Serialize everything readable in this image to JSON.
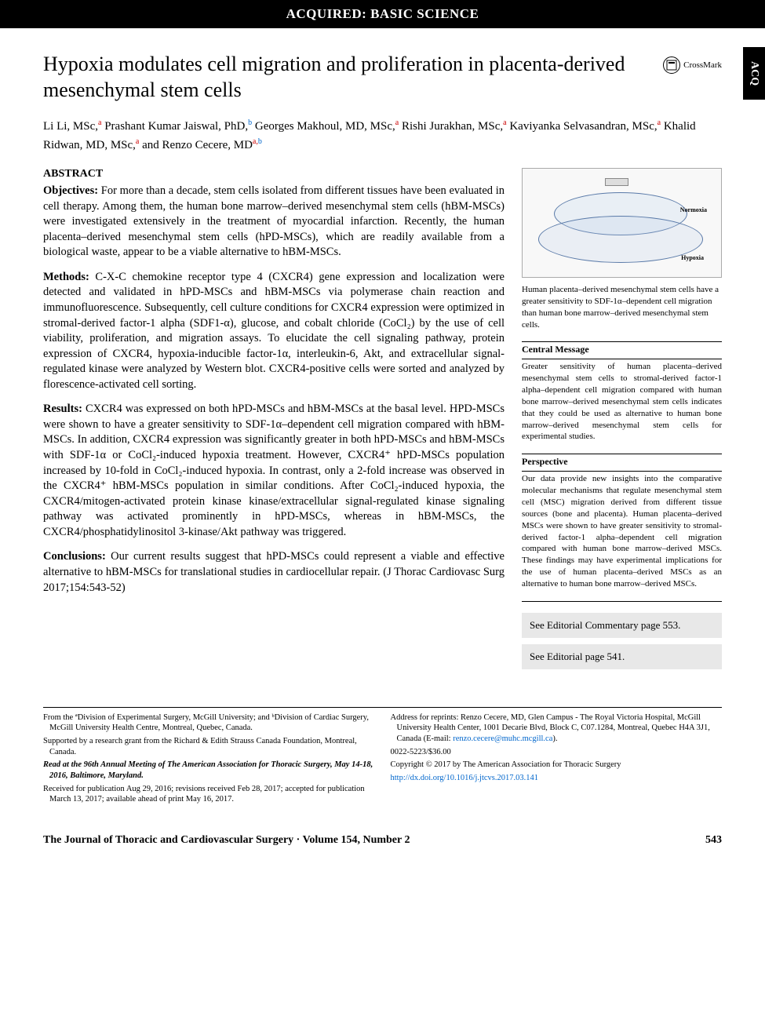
{
  "header": {
    "category": "ACQUIRED: BASIC SCIENCE",
    "side_tab": "ACQ"
  },
  "title": "Hypoxia modulates cell migration and proliferation in placenta-derived mesenchymal stem cells",
  "crossmark": "CrossMark",
  "authors_html": "Li Li, MSc,<span class='sup-a'>a</span> Prashant Kumar Jaiswal, PhD,<span class='sup-b'>b</span> Georges Makhoul, MD, MSc,<span class='sup-a'>a</span> Rishi Jurakhan, MSc,<span class='sup-a'>a</span> Kaviyanka Selvasandran, MSc,<span class='sup-a'>a</span> Khalid Ridwan, MD, MSc,<span class='sup-a'>a</span> and Renzo Cecere, MD<span class='sup-a'>a,</span><span class='sup-b'>b</span>",
  "abstract": {
    "heading": "ABSTRACT",
    "objectives": {
      "lead": "Objectives:",
      "text": " For more than a decade, stem cells isolated from different tissues have been evaluated in cell therapy. Among them, the human bone marrow–derived mesenchymal stem cells (hBM-MSCs) were investigated extensively in the treatment of myocardial infarction. Recently, the human placenta–derived mesenchymal stem cells (hPD-MSCs), which are readily available from a biological waste, appear to be a viable alternative to hBM-MSCs."
    },
    "methods": {
      "lead": "Methods:",
      "text": " C-X-C chemokine receptor type 4 (CXCR4) gene expression and localization were detected and validated in hPD-MSCs and hBM-MSCs via polymerase chain reaction and immunofluorescence. Subsequently, cell culture conditions for CXCR4 expression were optimized in stromal-derived factor-1 alpha (SDF1-α), glucose, and cobalt chloride (CoCl₂) by the use of cell viability, proliferation, and migration assays. To elucidate the cell signaling pathway, protein expression of CXCR4, hypoxia-inducible factor-1α, interleukin-6, Akt, and extracellular signal-regulated kinase were analyzed by Western blot. CXCR4-positive cells were sorted and analyzed by florescence-activated cell sorting."
    },
    "results": {
      "lead": "Results:",
      "text": " CXCR4 was expressed on both hPD-MSCs and hBM-MSCs at the basal level. HPD-MSCs were shown to have a greater sensitivity to SDF-1α–dependent cell migration compared with hBM-MSCs. In addition, CXCR4 expression was significantly greater in both hPD-MSCs and hBM-MSCs with SDF-1α or CoCl₂-induced hypoxia treatment. However, CXCR4⁺ hPD-MSCs population increased by 10-fold in CoCl₂-induced hypoxia. In contrast, only a 2-fold increase was observed in the CXCR4⁺ hBM-MSCs population in similar conditions. After CoCl₂-induced hypoxia, the CXCR4/mitogen-activated protein kinase kinase/extracellular signal-regulated kinase signaling pathway was activated prominently in hPD-MSCs, whereas in hBM-MSCs, the CXCR4/phosphatidylinositol 3-kinase/Akt pathway was triggered."
    },
    "conclusions": {
      "lead": "Conclusions:",
      "text": " Our current results suggest that hPD-MSCs could represent a viable and effective alternative to hBM-MSCs for translational studies in cardiocellular repair. (J Thorac Cardiovasc Surg 2017;154:543-52)"
    }
  },
  "sidebar": {
    "figure_caption": "Human placenta–derived mesenchymal stem cells have a greater sensitivity to SDF-1α–dependent cell migration than human bone marrow–derived mesenchymal stem cells.",
    "central": {
      "title": "Central Message",
      "body": "Greater sensitivity of human placenta–derived mesenchymal stem cells to stromal-derived factor-1 alpha–dependent cell migration compared with human bone marrow–derived mesenchymal stem cells indicates that they could be used as alternative to human bone marrow–derived mesenchymal stem cells for experimental studies."
    },
    "perspective": {
      "title": "Perspective",
      "body": "Our data provide new insights into the comparative molecular mechanisms that regulate mesenchymal stem cell (MSC) migration derived from different tissue sources (bone and placenta). Human placenta–derived MSCs were shown to have greater sensitivity to stromal-derived factor-1 alpha–dependent cell migration compared with human bone marrow–derived MSCs. These findings may have experimental implications for the use of human placenta–derived MSCs as an alternative to human bone marrow–derived MSCs."
    },
    "ref1": "See Editorial Commentary page 553.",
    "ref2": "See Editorial page 541.",
    "figure_labels": {
      "normoxia": "Normoxia",
      "hypoxia": "Hypoxia"
    }
  },
  "footnotes": {
    "left": [
      "From the ªDivision of Experimental Surgery, McGill University; and ᵇDivision of Cardiac Surgery, McGill University Health Centre, Montreal, Quebec, Canada.",
      "Supported by a research grant from the Richard & Edith Strauss Canada Foundation, Montreal, Canada.",
      "Read at the 96th Annual Meeting of The American Association for Thoracic Surgery, May 14-18, 2016, Baltimore, Maryland.",
      "Received for publication Aug 29, 2016; revisions received Feb 28, 2017; accepted for publication March 13, 2017; available ahead of print May 16, 2017."
    ],
    "right": [
      {
        "text": "Address for reprints: Renzo Cecere, MD, Glen Campus - The Royal Victoria Hospital, McGill University Health Center, 1001 Decarie Blvd, Block C, C07.1284, Montreal, Quebec H4A 3J1, Canada (E-mail: ",
        "link": "renzo.cecere@muhc.mcgill.ca",
        "after": ")."
      },
      {
        "text": "0022-5223/$36.00"
      },
      {
        "text": "Copyright © 2017 by The American Association for Thoracic Surgery"
      },
      {
        "link_only": "http://dx.doi.org/10.1016/j.jtcvs.2017.03.141"
      }
    ]
  },
  "footer": {
    "journal": "The Journal of Thoracic and Cardiovascular Surgery · Volume 154, Number 2",
    "page": "543"
  },
  "colors": {
    "link": "#0066cc",
    "sup_a": "#cc0000",
    "sup_b": "#0066cc",
    "ref_box_bg": "#e8e8e8"
  }
}
